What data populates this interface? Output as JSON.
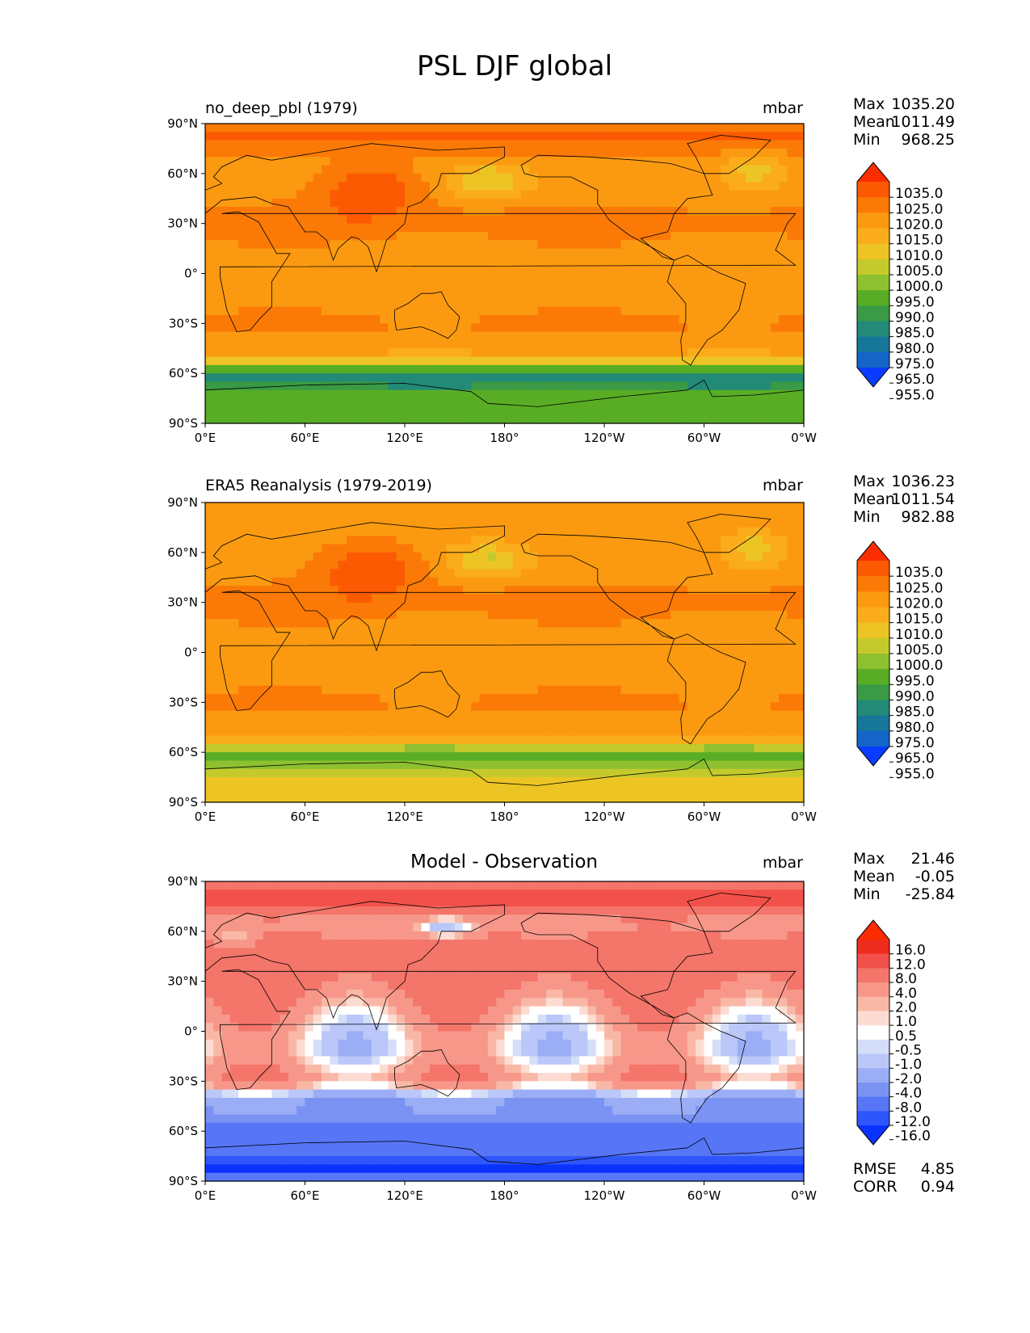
{
  "title": "PSL DJF global",
  "colors": {
    "abs_levels": [
      "#0a3cff",
      "#1565c8",
      "#17779a",
      "#238a78",
      "#3a9a45",
      "#58ad25",
      "#8fc030",
      "#c4ca2c",
      "#ecc524",
      "#fbac1a",
      "#fb9a10",
      "#fb7a07",
      "#fb5a03",
      "#fa2d00"
    ],
    "diff_levels": [
      "#0a32ff",
      "#2e56fa",
      "#5676f6",
      "#7a93f3",
      "#9badf4",
      "#bac7f8",
      "#d5def9",
      "#ffffff",
      "#fcdcd2",
      "#f9b8a6",
      "#f7978a",
      "#f4756a",
      "#f2504a",
      "#ee2c1e",
      "#fa2d00"
    ],
    "land": "#000000"
  },
  "chart_data": [
    {
      "type": "heatmap",
      "title": "no_deep_pbl (1979)",
      "units": "mbar",
      "stats": {
        "max_label": "Max",
        "max": "1035.20",
        "mean_label": "Mean",
        "mean": "1011.49",
        "min_label": "Min",
        "min": "968.25"
      },
      "xticks": [
        "0°E",
        "60°E",
        "120°E",
        "180°",
        "120°W",
        "60°W",
        "0°W"
      ],
      "yticks": [
        "90°N",
        "60°N",
        "30°N",
        "0°",
        "30°S",
        "60°S",
        "90°S"
      ],
      "xlim": [
        0,
        360
      ],
      "ylim": [
        -90,
        90
      ],
      "colorbar": {
        "levels": [
          "1035.0",
          "1025.0",
          "1020.0",
          "1015.0",
          "1010.0",
          "1005.0",
          "1000.0",
          "995.0",
          "990.0",
          "985.0",
          "980.0",
          "975.0",
          "965.0",
          "955.0"
        ],
        "extend": "both"
      },
      "field": "model"
    },
    {
      "type": "heatmap",
      "title": "ERA5 Reanalysis (1979-2019)",
      "units": "mbar",
      "stats": {
        "max_label": "Max",
        "max": "1036.23",
        "mean_label": "Mean",
        "mean": "1011.54",
        "min_label": "Min",
        "min": "982.88"
      },
      "xticks": [
        "0°E",
        "60°E",
        "120°E",
        "180°",
        "120°W",
        "60°W",
        "0°W"
      ],
      "yticks": [
        "90°N",
        "60°N",
        "30°N",
        "0°",
        "30°S",
        "60°S",
        "90°S"
      ],
      "xlim": [
        0,
        360
      ],
      "ylim": [
        -90,
        90
      ],
      "colorbar": {
        "levels": [
          "1035.0",
          "1025.0",
          "1020.0",
          "1015.0",
          "1010.0",
          "1005.0",
          "1000.0",
          "995.0",
          "990.0",
          "985.0",
          "980.0",
          "975.0",
          "965.0",
          "955.0"
        ],
        "extend": "both"
      },
      "field": "obs"
    },
    {
      "type": "heatmap",
      "title": "Model - Observation",
      "units": "mbar",
      "stats": {
        "max_label": "Max",
        "max": "21.46",
        "mean_label": "Mean",
        "mean": "-0.05",
        "min_label": "Min",
        "min": "-25.84"
      },
      "xticks": [
        "0°E",
        "60°E",
        "120°E",
        "180°",
        "120°W",
        "60°W",
        "0°W"
      ],
      "yticks": [
        "90°N",
        "60°N",
        "30°N",
        "0°",
        "30°S",
        "60°S",
        "90°S"
      ],
      "xlim": [
        0,
        360
      ],
      "ylim": [
        -90,
        90
      ],
      "colorbar": {
        "levels": [
          "16.0",
          "12.0",
          "8.0",
          "4.0",
          "2.0",
          "1.0",
          "0.5",
          "-0.5",
          "-1.0",
          "-2.0",
          "-4.0",
          "-8.0",
          "-12.0",
          "-16.0"
        ],
        "extend": "both"
      },
      "extra_stats": {
        "rmse_label": "RMSE",
        "rmse": "4.85",
        "corr_label": "CORR",
        "corr": "0.94"
      },
      "field": "diff"
    }
  ]
}
